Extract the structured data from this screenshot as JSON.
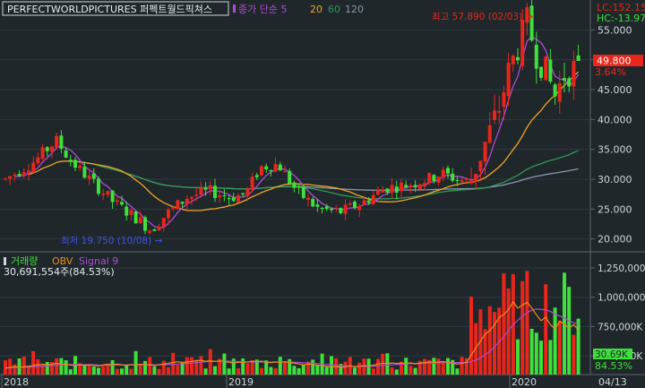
{
  "header": {
    "stock_name": "PERFECTWORLDPICTURES 퍼펙트월드픽쳐스",
    "ma_label": "종가 단순 5",
    "ma_periods": [
      "20",
      "60",
      "120"
    ],
    "lc_label": "LC:152.15",
    "hc_label": "HC:-13.97"
  },
  "price_panel": {
    "high_annotation": "최고 57.890 (02/03) →",
    "low_annotation": "최저 19.750 (10/08) →",
    "current_price": "49.800",
    "current_change": "3.64%",
    "y_ticks": [
      "55.000",
      "50.000",
      "45.000",
      "40.000",
      "35.000",
      "30.000",
      "25.000",
      "20.000"
    ],
    "y_tick_values": [
      55,
      50,
      45,
      40,
      35,
      30,
      25,
      20
    ],
    "ylim": [
      18,
      60
    ]
  },
  "volume_panel": {
    "legend_volume": "거래량",
    "legend_obv": "OBV",
    "legend_signal": "Signal 9",
    "volume_readout": "30,691,554주(84.53%)",
    "y_ticks": [
      "1,250,000",
      "1,000,000",
      "750,000K",
      "500,000K"
    ],
    "y_tick_values": [
      1250,
      1000,
      750,
      500
    ],
    "last_value": "30.69K",
    "last_pct": "84.53%",
    "ylim": [
      340,
      1380
    ]
  },
  "x_axis": {
    "labels": [
      "2018",
      "2019",
      "2020",
      "04/13"
    ]
  },
  "colors": {
    "up": "#e8261b",
    "down": "#3ee03a",
    "ma5": "#b04ad6",
    "ma20": "#f1a326",
    "ma60": "#2f9a58",
    "ma120": "#8a9aa8",
    "obv": "#f08a1c",
    "signal": "#b04ad6",
    "background": "#1f272b",
    "grid": "#2f393e"
  },
  "chart_data": {
    "type": "candlestick",
    "title": "PERFECTWORLDPICTURES 퍼펙트월드픽쳐스",
    "price_range": [
      18,
      60
    ],
    "high": {
      "value": 57.89,
      "date": "02/03"
    },
    "low": {
      "value": 19.75,
      "date": "10/08"
    },
    "last_close": 49.8,
    "last_change_pct": 3.64,
    "ma_series": [
      "5",
      "20",
      "60",
      "120"
    ],
    "volume_range_k": [
      0,
      1380
    ]
  }
}
